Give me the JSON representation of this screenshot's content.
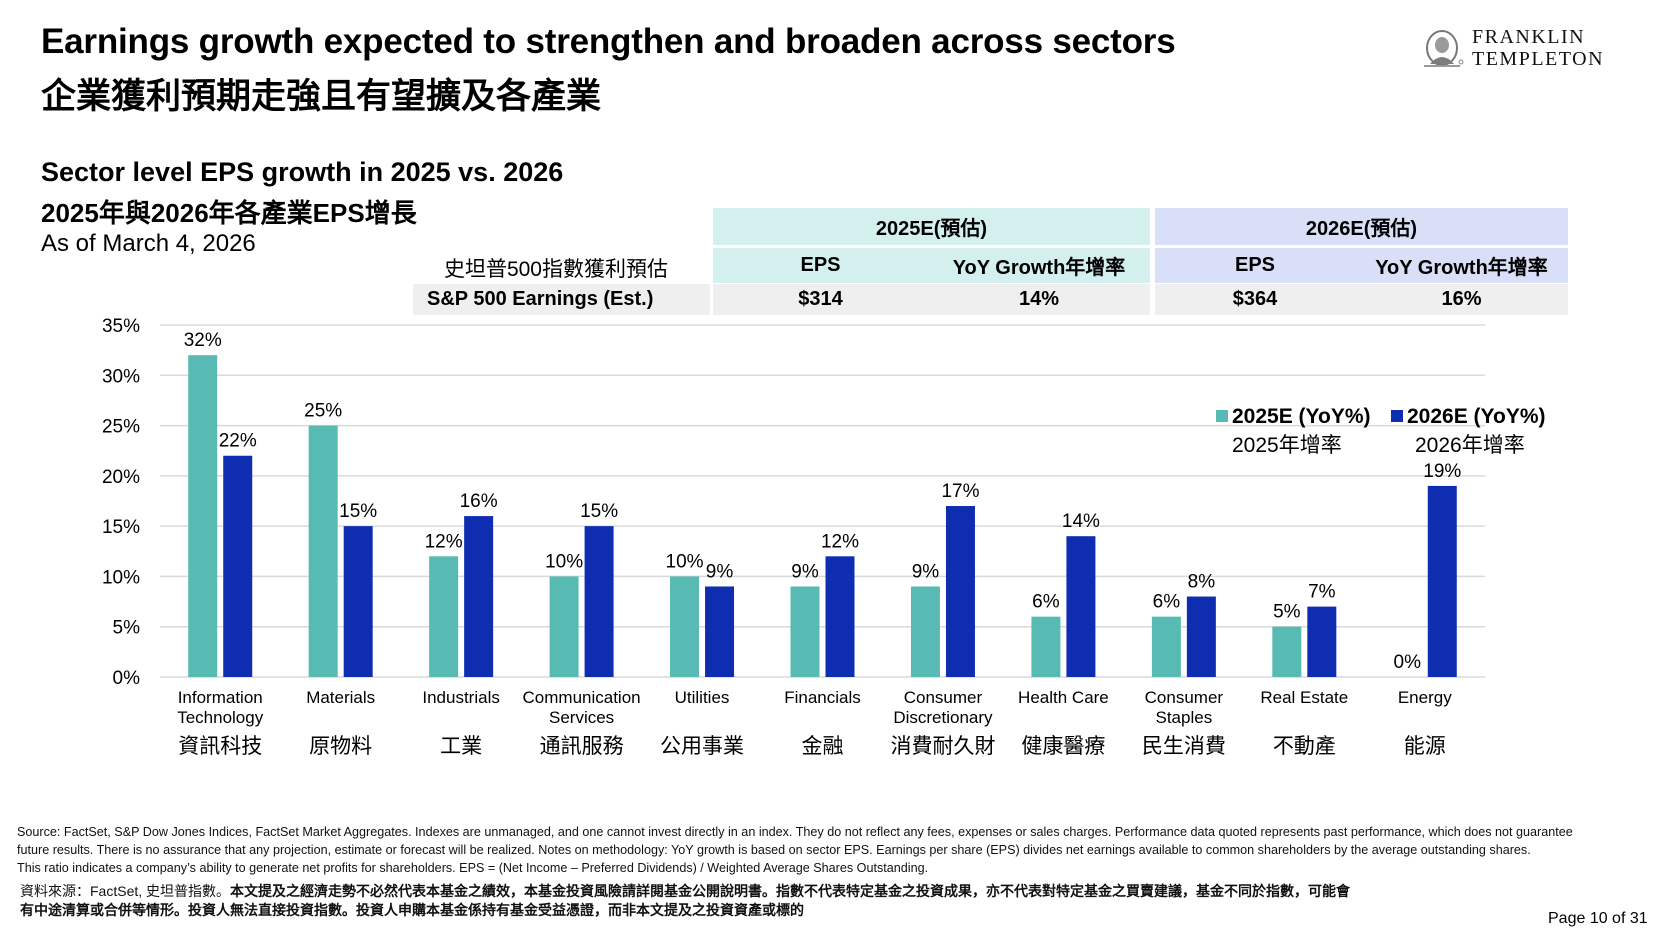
{
  "header": {
    "title_en": "Earnings growth expected to strengthen and broaden across sectors",
    "title_zh": "企業獲利預期走強且有望擴及各產業",
    "logo": {
      "line1": "FRANKLIN",
      "line2": "TEMPLETON",
      "icon": "franklin-portrait-icon"
    }
  },
  "subtitle": {
    "en": "Sector level EPS growth in 2025 vs. 2026",
    "zh": "2025年與2026年各產業EPS增長",
    "as_of": "As of March 4, 2026"
  },
  "table": {
    "group_2025": "2025E(預估)",
    "group_2026": "2026E(預估)",
    "col_eps": "EPS",
    "col_yoy": "YoY Growth年增率",
    "row_label_zh": "史坦普500指數獲利預估",
    "row_label_en": "S&P 500 Earnings (Est.)",
    "eps_2025": "$314",
    "yoy_2025": "14%",
    "eps_2026": "$364",
    "yoy_2026": "16%",
    "colors": {
      "teal_header": "#d3f0ee",
      "blue_header": "#dadff8",
      "row_bg": "#efefef"
    }
  },
  "legend": [
    {
      "label": "2025E (YoY%)",
      "sublabel": "2025年增率",
      "color": "#57bbb3"
    },
    {
      "label": "2026E (YoY%)",
      "sublabel": "2026年增率",
      "color": "#0f2db0"
    }
  ],
  "chart_data": {
    "type": "bar",
    "title": "Sector level EPS growth in 2025 vs. 2026",
    "xlabel": "",
    "ylabel": "",
    "ylim": [
      0,
      35
    ],
    "yticks": [
      0,
      5,
      10,
      15,
      20,
      25,
      30,
      35
    ],
    "ytick_labels": [
      "0%",
      "5%",
      "10%",
      "15%",
      "20%",
      "25%",
      "30%",
      "35%"
    ],
    "grid": true,
    "legend_position": "top-right",
    "categories": [
      "Information Technology",
      "Materials",
      "Industrials",
      "Communication Services",
      "Utilities",
      "Financials",
      "Consumer Discretionary",
      "Health Care",
      "Consumer Staples",
      "Real Estate",
      "Energy"
    ],
    "category_lines": [
      [
        "Information",
        "Technology"
      ],
      [
        "Materials"
      ],
      [
        "Industrials"
      ],
      [
        "Communication",
        "Services"
      ],
      [
        "Utilities"
      ],
      [
        "Financials"
      ],
      [
        "Consumer",
        "Discretionary"
      ],
      [
        "Health Care"
      ],
      [
        "Consumer",
        "Staples"
      ],
      [
        "Real Estate"
      ],
      [
        "Energy"
      ]
    ],
    "categories_zh": [
      "資訊科技",
      "原物料",
      "工業",
      "通訊服務",
      "公用事業",
      "金融",
      "消費耐久財",
      "健康醫療",
      "民生消費",
      "不動產",
      "能源"
    ],
    "series": [
      {
        "name": "2025E (YoY%)",
        "color": "#57bbb3",
        "values": [
          32,
          25,
          12,
          10,
          10,
          9,
          9,
          6,
          6,
          5,
          0
        ],
        "labels": [
          "32%",
          "25%",
          "12%",
          "10%",
          "10%",
          "9%",
          "9%",
          "6%",
          "6%",
          "5%",
          "0%"
        ]
      },
      {
        "name": "2026E (YoY%)",
        "color": "#0f2db0",
        "values": [
          22,
          15,
          16,
          15,
          9,
          12,
          17,
          14,
          8,
          7,
          19
        ],
        "labels": [
          "22%",
          "15%",
          "16%",
          "15%",
          "9%",
          "12%",
          "17%",
          "14%",
          "8%",
          "7%",
          "19%"
        ]
      }
    ]
  },
  "footer": {
    "source_en": [
      "Source: FactSet, S&P Dow Jones Indices, FactSet Market Aggregates. Indexes are unmanaged, and one cannot invest directly in an index. They do not reflect any fees, expenses or sales charges. Performance data quoted represents past performance, which does not guarantee",
      "future results.  There is no assurance that any projection, estimate or forecast will be realized. Notes on methodology: YoY growth is based on sector EPS. Earnings per share (EPS) divides net earnings available to common shareholders by the average outstanding shares.",
      "This ratio indicates a company’s ability to generate net profits for shareholders. EPS = (Net Income – Preferred Dividends) / Weighted Average Shares Outstanding."
    ],
    "source_zh_prefix": "資料來源：FactSet, 史坦普指數。",
    "source_zh_line1_bold": "本文提及之經濟走勢不必然代表本基金之績效，本基金投資風險請詳閱基金公開說明書。指數不代表特定基金之投資成果，亦不代表對特定基金之買賣建議，基金不同於指數，可能會",
    "source_zh_line2_bold": "有中途清算或合併等情形。投資人無法直接投資指數。投資人申購本基金係持有基金受益憑證，而非本文提及之投資資產或標的",
    "page": "Page 10 of 31"
  }
}
